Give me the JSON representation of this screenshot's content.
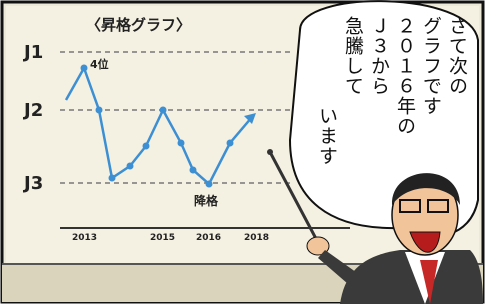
{
  "board": {
    "title": "〈昇格グラフ〉",
    "levels": [
      "J1",
      "J2",
      "J3"
    ],
    "annotations": [
      "4位",
      "降格"
    ],
    "years": [
      "2013",
      "2015",
      "2016",
      "2018"
    ]
  },
  "speech": {
    "lines": [
      "さて次の",
      "グラフです",
      "２０１６年の",
      "Ｊ３から",
      "急騰して",
      "います"
    ]
  }
}
